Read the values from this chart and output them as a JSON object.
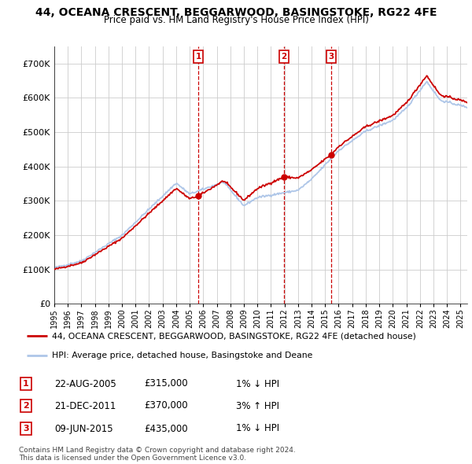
{
  "title": "44, OCEANA CRESCENT, BEGGARWOOD, BASINGSTOKE, RG22 4FE",
  "subtitle": "Price paid vs. HM Land Registry's House Price Index (HPI)",
  "legend_line1": "44, OCEANA CRESCENT, BEGGARWOOD, BASINGSTOKE, RG22 4FE (detached house)",
  "legend_line2": "HPI: Average price, detached house, Basingstoke and Deane",
  "footer_line1": "Contains HM Land Registry data © Crown copyright and database right 2024.",
  "footer_line2": "This data is licensed under the Open Government Licence v3.0.",
  "transactions": [
    {
      "num": "1",
      "date": "22-AUG-2005",
      "price": "£315,000",
      "hpi": "1% ↓ HPI",
      "year": 2005.64
    },
    {
      "num": "2",
      "date": "21-DEC-2011",
      "price": "£370,000",
      "hpi": "3% ↑ HPI",
      "year": 2011.97
    },
    {
      "num": "3",
      "date": "09-JUN-2015",
      "price": "£435,000",
      "hpi": "1% ↓ HPI",
      "year": 2015.44
    }
  ],
  "sale_prices": [
    315000,
    370000,
    435000
  ],
  "sale_years": [
    2005.64,
    2011.97,
    2015.44
  ],
  "hpi_line_color": "#aec6e8",
  "price_line_color": "#cc0000",
  "dot_color": "#cc0000",
  "background_color": "#ffffff",
  "grid_color": "#cccccc",
  "ylim": [
    0,
    750000
  ],
  "yticks": [
    0,
    100000,
    200000,
    300000,
    400000,
    500000,
    600000,
    700000
  ],
  "xmin": 1995,
  "xmax": 2025.5
}
